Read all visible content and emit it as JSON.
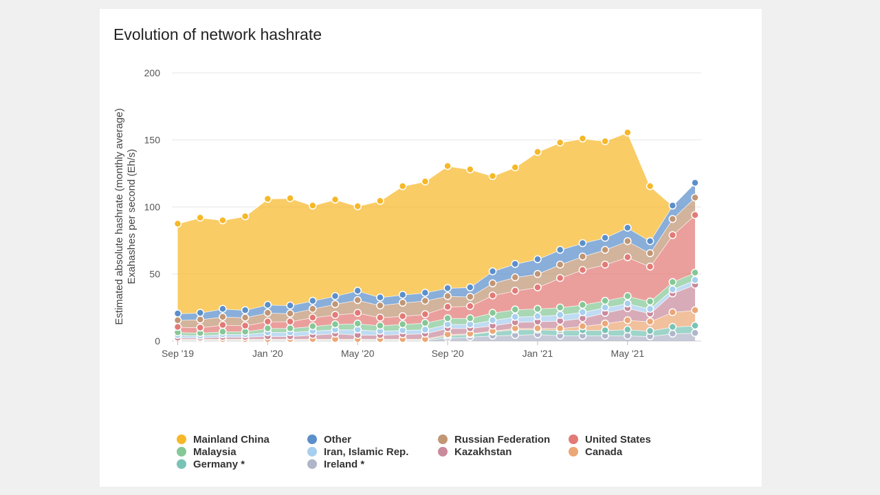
{
  "chart_data": {
    "type": "area",
    "stacked": true,
    "title": "Evolution of network hashrate",
    "ylabel_lines": [
      "Estimated absolute hashrate (monthly average)",
      "Exahashes per second (Eh/s)"
    ],
    "xlabel": "",
    "ylim": [
      0,
      200
    ],
    "y_ticks": [
      "0",
      "50",
      "100",
      "150",
      "200"
    ],
    "x_tick_labels": [
      {
        "index": 0,
        "label": "Sep '19"
      },
      {
        "index": 4,
        "label": "Jan '20"
      },
      {
        "index": 8,
        "label": "May '20"
      },
      {
        "index": 12,
        "label": "Sep '20"
      },
      {
        "index": 16,
        "label": "Jan '21"
      },
      {
        "index": 20,
        "label": "May '21"
      }
    ],
    "x": [
      "Sep 2019",
      "Oct 2019",
      "Nov 2019",
      "Dec 2019",
      "Jan 2020",
      "Feb 2020",
      "Mar 2020",
      "Apr 2020",
      "May 2020",
      "Jun 2020",
      "Jul 2020",
      "Aug 2020",
      "Sep 2020",
      "Oct 2020",
      "Nov 2020",
      "Dec 2020",
      "Jan 2021",
      "Feb 2021",
      "Mar 2021",
      "Apr 2021",
      "May 2021",
      "Jun 2021",
      "Jul 2021",
      "Aug 2021"
    ],
    "grid": true,
    "legend_position": "bottom",
    "series": [
      {
        "name": "Ireland *",
        "color": "#b0b6c9",
        "values": [
          0.5,
          0.5,
          0.5,
          0.5,
          0.5,
          0.5,
          0.5,
          0.5,
          0.5,
          0.5,
          0.5,
          0.5,
          2.5,
          3,
          4,
          4.5,
          5,
          4,
          4,
          4,
          4,
          3.5,
          5.5,
          6
        ]
      },
      {
        "name": "Germany *",
        "color": "#79c3b6",
        "values": [
          0.5,
          0.5,
          0.5,
          0.5,
          0.5,
          0.5,
          0.5,
          0.5,
          0.5,
          0.5,
          0.5,
          0.5,
          1.5,
          2,
          3,
          4,
          3.5,
          4,
          4,
          4,
          4.5,
          4,
          5,
          5.5
        ]
      },
      {
        "name": "Canada",
        "color": "#eba776",
        "values": [
          0.5,
          0.5,
          0.5,
          0.5,
          0.5,
          0.5,
          0.5,
          0.5,
          0.5,
          0.5,
          0.5,
          0.5,
          1,
          0.5,
          0.5,
          1,
          1,
          1.5,
          3,
          5,
          7,
          7,
          11,
          11.5
        ]
      },
      {
        "name": "Kazakhstan",
        "color": "#c98a9c",
        "values": [
          1,
          1,
          1.5,
          1.5,
          2,
          2,
          3,
          4,
          3,
          3,
          3.5,
          4,
          4.5,
          4,
          4,
          4.5,
          5,
          5.5,
          6,
          8,
          9,
          6,
          14,
          19
        ]
      },
      {
        "name": "Iran, Islamic Rep.",
        "color": "#a8cfee",
        "values": [
          2,
          1.5,
          2,
          2,
          3,
          3,
          3,
          3,
          4,
          3,
          3,
          3,
          3,
          3,
          4,
          4,
          4,
          4.5,
          4.5,
          4,
          3.5,
          3.5,
          3,
          3.5
        ]
      },
      {
        "name": "Malaysia",
        "color": "#86c796",
        "values": [
          2,
          2,
          2,
          2,
          3,
          3,
          3.5,
          4,
          4.5,
          4,
          4.5,
          5,
          4.5,
          4.5,
          5.5,
          5.5,
          5.5,
          5.5,
          5.5,
          5,
          5.5,
          5.5,
          5.5,
          5.5
        ]
      },
      {
        "name": "United States",
        "color": "#e27a76",
        "values": [
          4,
          4,
          5,
          4.5,
          5,
          5,
          6.5,
          7,
          8,
          6,
          6,
          6.5,
          8.5,
          9,
          13,
          14,
          16,
          22,
          26,
          27,
          29,
          26,
          35,
          43
        ]
      },
      {
        "name": "Russian Federation",
        "color": "#c19675",
        "values": [
          5,
          6,
          6,
          6,
          6.5,
          6,
          6.5,
          8,
          9.5,
          9,
          10,
          10,
          8,
          7,
          9,
          10,
          10,
          10,
          10,
          11,
          12,
          10,
          12,
          13
        ]
      },
      {
        "name": "Other",
        "color": "#5b8fcb",
        "values": [
          5,
          5,
          6,
          5.5,
          6,
          6,
          6,
          6,
          7,
          6,
          6,
          6,
          6,
          7,
          9,
          10,
          11,
          11,
          10,
          9,
          10,
          9,
          10,
          11
        ]
      },
      {
        "name": "Mainland China",
        "color": "#f6b829",
        "values": [
          67,
          71,
          66,
          70,
          79,
          80,
          71,
          72,
          63,
          72,
          81,
          83,
          91,
          88,
          71,
          72,
          80,
          80,
          78,
          72,
          71,
          41,
          0,
          0
        ]
      }
    ]
  },
  "legend": [
    {
      "name": "Mainland China",
      "color": "#f6b829"
    },
    {
      "name": "Other",
      "color": "#5b8fcb"
    },
    {
      "name": "Russian Federation",
      "color": "#c19675"
    },
    {
      "name": "United States",
      "color": "#e27a76"
    },
    {
      "name": "Malaysia",
      "color": "#86c796"
    },
    {
      "name": "Iran, Islamic Rep.",
      "color": "#a8cfee"
    },
    {
      "name": "Kazakhstan",
      "color": "#c98a9c"
    },
    {
      "name": "Canada",
      "color": "#eba776"
    },
    {
      "name": "Germany *",
      "color": "#79c3b6"
    },
    {
      "name": "Ireland *",
      "color": "#b0b6c9"
    }
  ]
}
